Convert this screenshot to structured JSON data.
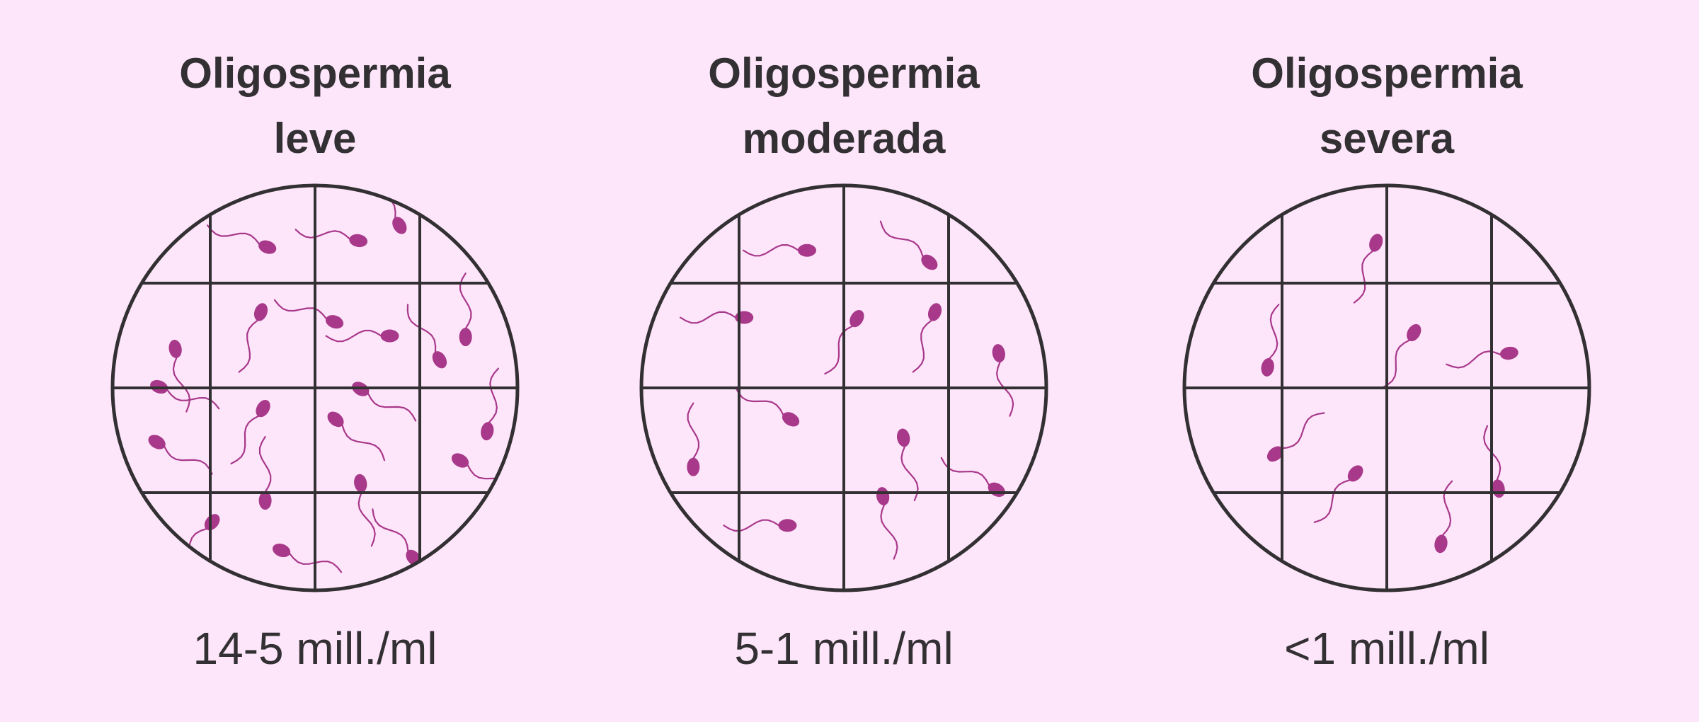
{
  "colors": {
    "background": "#fde6fa",
    "grid": "#333033",
    "sperm": "#a8388a"
  },
  "panels": [
    {
      "title_line1": "Oligospermia",
      "title_line2": "leve",
      "concentration": "14-5 mill./ml"
    },
    {
      "title_line1": "Oligospermia",
      "title_line2": "moderada",
      "concentration": "5-1 mill./ml"
    },
    {
      "title_line1": "Oligospermia",
      "title_line2": "severa",
      "concentration": "<1 mill./ml"
    }
  ]
}
